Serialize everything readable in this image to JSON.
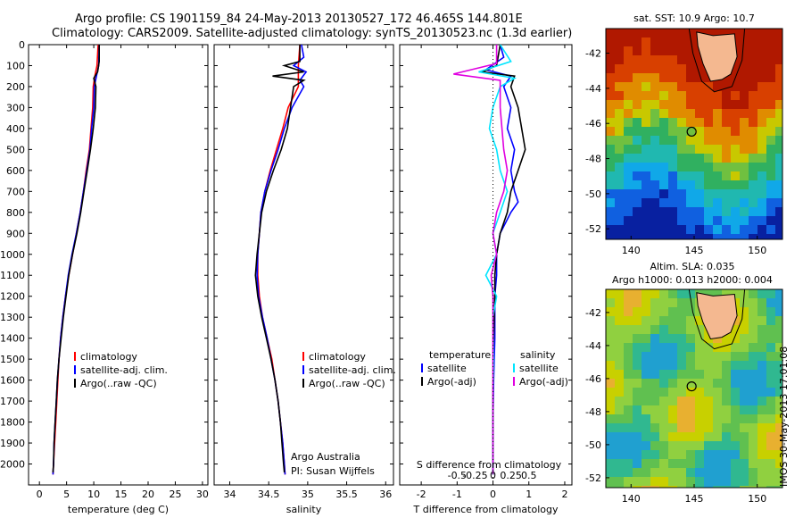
{
  "header": {
    "line1": "Argo profile: CS 1901159_84 24-May-2013 20130527_172 46.465S 144.801E",
    "line2": "Climatology: CARS2009. Satellite-adjusted climatology: synTS_20130523.nc (1.3d earlier)"
  },
  "stamp": "IMOS 30-May-2013 17:01:08",
  "colors": {
    "clim": "#ff0000",
    "sat": "#0000ff",
    "argo": "#000000",
    "sal_sat": "#00e5ff",
    "sal_argo": "#e000e0"
  },
  "chart_data": [
    {
      "type": "line",
      "id": "temperature-profile",
      "xlabel": "temperature (deg C)",
      "xlim": [
        -2,
        31
      ],
      "xticks": [
        0,
        5,
        10,
        15,
        20,
        25,
        30
      ],
      "ylim": [
        2100,
        0
      ],
      "yticks": [
        0,
        100,
        200,
        300,
        400,
        500,
        600,
        700,
        800,
        900,
        1000,
        1100,
        1200,
        1300,
        1400,
        1500,
        1600,
        1700,
        1800,
        1900,
        2000
      ],
      "y_reversed": true,
      "legend": [
        "climatology",
        "satellite-adj. clim.",
        "Argo(..raw -QC)"
      ],
      "series": [
        {
          "name": "climatology",
          "color": "#ff0000",
          "points": [
            [
              10.8,
              0
            ],
            [
              10.6,
              100
            ],
            [
              10.2,
              150
            ],
            [
              9.9,
              200
            ],
            [
              9.8,
              300
            ],
            [
              9.5,
              400
            ],
            [
              9.2,
              500
            ],
            [
              8.6,
              600
            ],
            [
              8.1,
              700
            ],
            [
              7.5,
              800
            ],
            [
              6.8,
              900
            ],
            [
              6.1,
              1000
            ],
            [
              5.4,
              1100
            ],
            [
              4.8,
              1200
            ],
            [
              4.3,
              1300
            ],
            [
              3.9,
              1400
            ],
            [
              3.6,
              1500
            ],
            [
              3.4,
              1600
            ],
            [
              3.2,
              1700
            ],
            [
              3.0,
              1800
            ],
            [
              2.8,
              1900
            ],
            [
              2.6,
              2000
            ],
            [
              2.5,
              2050
            ]
          ]
        },
        {
          "name": "satellite-adj. clim.",
          "color": "#0000ff",
          "points": [
            [
              11.0,
              0
            ],
            [
              10.9,
              100
            ],
            [
              10.5,
              150
            ],
            [
              10.1,
              200
            ],
            [
              10.0,
              300
            ],
            [
              9.6,
              400
            ],
            [
              9.3,
              500
            ],
            [
              8.7,
              600
            ],
            [
              8.1,
              700
            ],
            [
              7.5,
              800
            ],
            [
              6.8,
              900
            ],
            [
              6.0,
              1000
            ],
            [
              5.3,
              1100
            ],
            [
              4.8,
              1200
            ],
            [
              4.3,
              1300
            ],
            [
              3.9,
              1400
            ],
            [
              3.6,
              1500
            ],
            [
              3.3,
              1600
            ],
            [
              3.1,
              1700
            ],
            [
              2.9,
              1800
            ],
            [
              2.7,
              1900
            ],
            [
              2.6,
              2000
            ],
            [
              2.5,
              2050
            ]
          ]
        },
        {
          "name": "Argo(..raw -QC)",
          "color": "#000000",
          "points": [
            [
              11.0,
              0
            ],
            [
              11.0,
              80
            ],
            [
              10.7,
              130
            ],
            [
              10.0,
              160
            ],
            [
              10.4,
              200
            ],
            [
              10.3,
              300
            ],
            [
              9.9,
              400
            ],
            [
              9.4,
              500
            ],
            [
              8.8,
              600
            ],
            [
              8.2,
              700
            ],
            [
              7.6,
              800
            ],
            [
              6.9,
              900
            ],
            [
              6.1,
              1000
            ],
            [
              5.4,
              1100
            ],
            [
              4.9,
              1200
            ],
            [
              4.4,
              1300
            ],
            [
              4.0,
              1400
            ],
            [
              3.6,
              1500
            ],
            [
              3.3,
              1600
            ],
            [
              3.1,
              1700
            ],
            [
              2.9,
              1800
            ],
            [
              2.7,
              1900
            ],
            [
              2.6,
              2000
            ],
            [
              2.5,
              2040
            ]
          ]
        }
      ]
    },
    {
      "type": "line",
      "id": "salinity-profile",
      "xlabel": "salinity",
      "xlim": [
        33.8,
        36.1
      ],
      "xticks": [
        34,
        34.5,
        35,
        35.5,
        36
      ],
      "ylim": [
        2100,
        0
      ],
      "y_reversed": true,
      "legend": [
        "climatology",
        "satellite-adj. clim.",
        "Argo(..raw -QC)"
      ],
      "notes": [
        "Argo Australia",
        "PI: Susan Wijffels"
      ],
      "series": [
        {
          "name": "climatology",
          "color": "#ff0000",
          "points": [
            [
              34.9,
              0
            ],
            [
              34.88,
              100
            ],
            [
              34.88,
              200
            ],
            [
              34.75,
              300
            ],
            [
              34.68,
              400
            ],
            [
              34.6,
              500
            ],
            [
              34.52,
              600
            ],
            [
              34.45,
              700
            ],
            [
              34.4,
              800
            ],
            [
              34.38,
              900
            ],
            [
              34.36,
              1000
            ],
            [
              34.36,
              1100
            ],
            [
              34.38,
              1200
            ],
            [
              34.42,
              1300
            ],
            [
              34.48,
              1400
            ],
            [
              34.54,
              1500
            ],
            [
              34.58,
              1600
            ],
            [
              34.62,
              1700
            ],
            [
              34.65,
              1800
            ],
            [
              34.68,
              1900
            ],
            [
              34.7,
              2000
            ],
            [
              34.71,
              2050
            ]
          ]
        },
        {
          "name": "satellite-adj. clim.",
          "color": "#0000ff",
          "points": [
            [
              34.92,
              0
            ],
            [
              34.95,
              60
            ],
            [
              34.82,
              100
            ],
            [
              34.98,
              130
            ],
            [
              34.9,
              170
            ],
            [
              34.95,
              200
            ],
            [
              34.8,
              300
            ],
            [
              34.7,
              400
            ],
            [
              34.62,
              500
            ],
            [
              34.53,
              600
            ],
            [
              34.45,
              700
            ],
            [
              34.4,
              800
            ],
            [
              34.38,
              900
            ],
            [
              34.36,
              1000
            ],
            [
              34.35,
              1100
            ],
            [
              34.37,
              1200
            ],
            [
              34.42,
              1300
            ],
            [
              34.48,
              1400
            ],
            [
              34.53,
              1500
            ],
            [
              34.58,
              1600
            ],
            [
              34.62,
              1700
            ],
            [
              34.65,
              1800
            ],
            [
              34.68,
              1900
            ],
            [
              34.7,
              2000
            ],
            [
              34.71,
              2050
            ]
          ]
        },
        {
          "name": "Argo(..raw -QC)",
          "color": "#000000",
          "points": [
            [
              34.9,
              0
            ],
            [
              34.9,
              80
            ],
            [
              34.7,
              100
            ],
            [
              34.95,
              130
            ],
            [
              34.55,
              150
            ],
            [
              34.95,
              170
            ],
            [
              34.82,
              200
            ],
            [
              34.78,
              300
            ],
            [
              34.74,
              400
            ],
            [
              34.66,
              500
            ],
            [
              34.56,
              600
            ],
            [
              34.47,
              700
            ],
            [
              34.41,
              800
            ],
            [
              34.38,
              900
            ],
            [
              34.35,
              1000
            ],
            [
              34.33,
              1100
            ],
            [
              34.36,
              1200
            ],
            [
              34.41,
              1300
            ],
            [
              34.47,
              1400
            ],
            [
              34.53,
              1500
            ],
            [
              34.58,
              1600
            ],
            [
              34.62,
              1700
            ],
            [
              34.65,
              1800
            ],
            [
              34.67,
              1900
            ],
            [
              34.69,
              2000
            ],
            [
              34.7,
              2040
            ]
          ]
        }
      ]
    },
    {
      "type": "line",
      "id": "difference-profile",
      "xlabel_top": "S difference from climatology",
      "xlabel": "T difference from climatology",
      "xlim": [
        -2.6,
        2.2
      ],
      "xticks_bottom": [
        -2,
        -1,
        0,
        1,
        2
      ],
      "xticks_top": [
        -0.5,
        -0.25,
        0,
        0.25,
        0.5
      ],
      "ylim": [
        2100,
        0
      ],
      "y_reversed": true,
      "legend": [
        {
          "group": "temperature",
          "items": [
            "satellite",
            "Argo(-adj)"
          ]
        },
        {
          "group": "salinity",
          "items": [
            "satellite",
            "Argo(-adj)"
          ]
        }
      ],
      "series": [
        {
          "name": "T satellite",
          "color": "#0000ff",
          "points": [
            [
              0.2,
              0
            ],
            [
              0.3,
              60
            ],
            [
              -0.2,
              120
            ],
            [
              0.5,
              150
            ],
            [
              0.3,
              200
            ],
            [
              0.5,
              300
            ],
            [
              0.4,
              400
            ],
            [
              0.6,
              500
            ],
            [
              0.5,
              600
            ],
            [
              0.6,
              700
            ],
            [
              0.7,
              750
            ],
            [
              0.5,
              800
            ],
            [
              0.2,
              900
            ],
            [
              0.1,
              1000
            ],
            [
              0.1,
              1100
            ],
            [
              0.05,
              1200
            ],
            [
              0.05,
              1400
            ],
            [
              0.02,
              1600
            ],
            [
              0.0,
              1800
            ],
            [
              0.0,
              2050
            ]
          ]
        },
        {
          "name": "T Argo(-adj)",
          "color": "#000000",
          "points": [
            [
              0.2,
              0
            ],
            [
              0.1,
              100
            ],
            [
              -0.3,
              130
            ],
            [
              0.6,
              150
            ],
            [
              0.5,
              200
            ],
            [
              0.7,
              300
            ],
            [
              0.8,
              400
            ],
            [
              0.9,
              500
            ],
            [
              0.7,
              600
            ],
            [
              0.5,
              700
            ],
            [
              0.4,
              800
            ],
            [
              0.2,
              900
            ],
            [
              0.1,
              1000
            ],
            [
              0.05,
              1100
            ],
            [
              0.05,
              1200
            ],
            [
              0.02,
              1400
            ],
            [
              0.0,
              1700
            ],
            [
              0.0,
              2050
            ]
          ]
        },
        {
          "name": "S satellite",
          "color": "#00e5ff",
          "points": [
            [
              0.2,
              0
            ],
            [
              0.5,
              80
            ],
            [
              -0.4,
              130
            ],
            [
              0.6,
              160
            ],
            [
              0.2,
              200
            ],
            [
              0.0,
              300
            ],
            [
              -0.1,
              400
            ],
            [
              0.1,
              500
            ],
            [
              0.2,
              600
            ],
            [
              0.4,
              700
            ],
            [
              0.2,
              800
            ],
            [
              0.0,
              900
            ],
            [
              0.1,
              1000
            ],
            [
              -0.2,
              1100
            ],
            [
              0.1,
              1200
            ],
            [
              0.0,
              1300
            ],
            [
              0.02,
              1500
            ],
            [
              0.0,
              1700
            ],
            [
              0.0,
              2050
            ]
          ]
        },
        {
          "name": "S Argo(-adj)",
          "color": "#e000e0",
          "points": [
            [
              0.1,
              0
            ],
            [
              0.1,
              90
            ],
            [
              -1.1,
              140
            ],
            [
              0.2,
              170
            ],
            [
              0.2,
              200
            ],
            [
              0.2,
              300
            ],
            [
              0.3,
              500
            ],
            [
              0.4,
              600
            ],
            [
              0.3,
              700
            ],
            [
              0.1,
              800
            ],
            [
              0.0,
              900
            ],
            [
              0.1,
              1000
            ],
            [
              -0.05,
              1100
            ],
            [
              0.0,
              1200
            ],
            [
              0.0,
              1400
            ],
            [
              0.0,
              2050
            ]
          ]
        }
      ]
    },
    {
      "type": "heatmap",
      "id": "sst-map",
      "title": "sat. SST: 10.9 Argo: 10.7",
      "xticks": [
        140,
        145,
        150
      ],
      "yticks": [
        -42,
        -44,
        -46,
        -48,
        -50,
        -52
      ],
      "xlim": [
        138,
        152
      ],
      "ylim": [
        -52.6,
        -40.6
      ],
      "marker": [
        144.8,
        -46.47
      ]
    },
    {
      "type": "heatmap",
      "id": "sla-map",
      "title": "Altim. SLA: 0.035",
      "subtitle": "Argo h1000: 0.013 h2000: 0.004",
      "xticks": [
        140,
        145,
        150
      ],
      "yticks": [
        -42,
        -44,
        -46,
        -48,
        -50,
        -52
      ],
      "xlim": [
        138,
        152
      ],
      "ylim": [
        -52.6,
        -40.6
      ],
      "marker": [
        144.8,
        -46.47
      ]
    }
  ]
}
